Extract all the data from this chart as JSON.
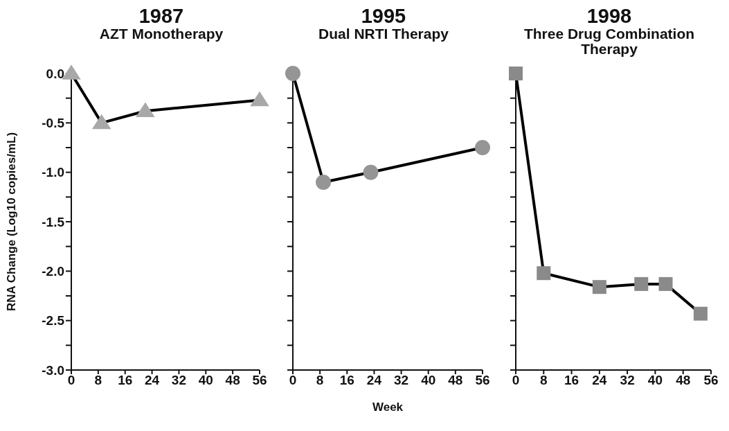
{
  "chart_data": [
    {
      "type": "line",
      "title": "1987",
      "subtitle": "AZT Monotherapy",
      "ylabel": "RNA Change (Log10 copies/mL)",
      "xlim": [
        0,
        56
      ],
      "xticks": [
        0,
        8,
        16,
        24,
        32,
        40,
        48,
        56
      ],
      "ylim": [
        -3,
        0
      ],
      "yticks": [
        {
          "value": -3,
          "label": "-3.0"
        },
        {
          "value": -2.75,
          "label": null
        },
        {
          "value": -2.5,
          "label": "-2.5"
        },
        {
          "value": -2.25,
          "label": null
        },
        {
          "value": -2,
          "label": "-2.0"
        },
        {
          "value": -1.75,
          "label": null
        },
        {
          "value": -1.5,
          "label": "-1.5"
        },
        {
          "value": -1.25,
          "label": null
        },
        {
          "value": -1,
          "label": "-1.0"
        },
        {
          "value": -0.75,
          "label": null
        },
        {
          "value": -0.5,
          "label": "-0.5"
        },
        {
          "value": -0.25,
          "label": null
        },
        {
          "value": 0,
          "label": "0.0"
        }
      ],
      "marker": "triangle",
      "grid": false,
      "legend": false,
      "series": [
        {
          "color": "#000000",
          "colors": [
            "#a8a8a8",
            "#a8a8a8",
            "#a8a8a8",
            "#a8a8a8"
          ],
          "x": [
            0,
            9,
            22,
            56
          ],
          "values": [
            0,
            -0.5,
            -0.38,
            -0.27
          ]
        }
      ]
    },
    {
      "type": "line",
      "title": "1995",
      "subtitle": "Dual NRTI Therapy",
      "xlabel": "Week",
      "xlim": [
        0,
        56
      ],
      "xticks": [
        0,
        8,
        16,
        24,
        32,
        40,
        48,
        56
      ],
      "ylim": [
        -3,
        0
      ],
      "yticks": [
        {
          "value": -3,
          "label": null
        },
        {
          "value": -2.75,
          "label": null
        },
        {
          "value": -2.5,
          "label": null
        },
        {
          "value": -2.25,
          "label": null
        },
        {
          "value": -2,
          "label": null
        },
        {
          "value": -1.75,
          "label": null
        },
        {
          "value": -1.5,
          "label": null
        },
        {
          "value": -1.25,
          "label": null
        },
        {
          "value": -1,
          "label": null
        },
        {
          "value": -0.75,
          "label": null
        },
        {
          "value": -0.5,
          "label": null
        },
        {
          "value": -0.25,
          "label": null
        },
        {
          "value": 0,
          "label": null
        }
      ],
      "tick_labels": "x",
      "marker": "circle",
      "grid": false,
      "legend": false,
      "series": [
        {
          "color": "#000000",
          "colors": [
            "#959595",
            "#959595",
            "#959595",
            "#959595"
          ],
          "x": [
            0,
            9,
            23,
            56
          ],
          "values": [
            0,
            -1.1,
            -1.0,
            -0.75
          ]
        }
      ]
    },
    {
      "type": "line",
      "title": "1998",
      "subtitle": "Three Drug Combination Therapy",
      "xlim": [
        0,
        56
      ],
      "xticks": [
        0,
        8,
        16,
        24,
        32,
        40,
        48,
        56
      ],
      "ylim": [
        -3,
        0
      ],
      "yticks": [
        {
          "value": -3,
          "label": null
        },
        {
          "value": -2.75,
          "label": null
        },
        {
          "value": -2.5,
          "label": null
        },
        {
          "value": -2.25,
          "label": null
        },
        {
          "value": -2,
          "label": null
        },
        {
          "value": -1.75,
          "label": null
        },
        {
          "value": -1.5,
          "label": null
        },
        {
          "value": -1.25,
          "label": null
        },
        {
          "value": -1,
          "label": null
        },
        {
          "value": -0.75,
          "label": null
        },
        {
          "value": -0.5,
          "label": null
        },
        {
          "value": -0.25,
          "label": null
        },
        {
          "value": 0,
          "label": null
        }
      ],
      "tick_labels": "x",
      "marker": "square",
      "grid": false,
      "legend": false,
      "series": [
        {
          "color": "#000000",
          "colors": [
            "#8a8a8a",
            "#8a8a8a",
            "#8a8a8a",
            "#8a8a8a",
            "#8a8a8a",
            "#8a8a8a"
          ],
          "x": [
            0,
            8,
            24,
            36,
            43,
            53
          ],
          "values": [
            0,
            -2.02,
            -2.16,
            -2.13,
            -2.13,
            -2.43
          ]
        }
      ]
    }
  ]
}
